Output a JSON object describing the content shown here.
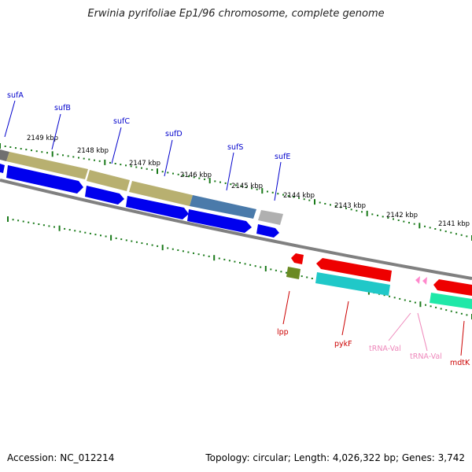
{
  "title": "Erwinia pyrifoliae Ep1/96 chromosome, complete genome",
  "footer": {
    "accession": "Accession: NC_012214",
    "summary": "Topology: circular; Length: 4,026,322 bp; Genes: 3,742"
  },
  "scale_labels": [
    "2149 kbp",
    "2148 kbp",
    "2147 kbp",
    "2146 kbp",
    "2145 kbp",
    "2144 kbp",
    "2143 kbp",
    "2142 kbp",
    "2141 kbp"
  ],
  "genes_top": [
    {
      "label": "sufA",
      "color": "#0000cc"
    },
    {
      "label": "sufB",
      "color": "#0000cc"
    },
    {
      "label": "sufC",
      "color": "#0000cc"
    },
    {
      "label": "sufD",
      "color": "#0000cc"
    },
    {
      "label": "sufS",
      "color": "#0000cc"
    },
    {
      "label": "sufE",
      "color": "#0000cc"
    }
  ],
  "genes_bottom": [
    {
      "label": "lpp",
      "color": "#cc0000"
    },
    {
      "label": "pykF",
      "color": "#cc0000"
    },
    {
      "label": "tRNA-Val",
      "color": "#ee88bb"
    },
    {
      "label": "tRNA-Val",
      "color": "#ee88bb"
    },
    {
      "label": "mdtK",
      "color": "#cc0000"
    }
  ],
  "colors": {
    "backbone": "#808080",
    "tick": "#1a7a1a",
    "cds": "#0000ee",
    "cog_olive": "#b8b070",
    "cog_steel": "#4a7aaa",
    "cog_grey": "#b0b0b0",
    "rev_red": "#ee0000",
    "cyan": "#20c8c8",
    "green": "#66aa22",
    "teal": "#20e8a8",
    "trna": "#ff88cc"
  }
}
